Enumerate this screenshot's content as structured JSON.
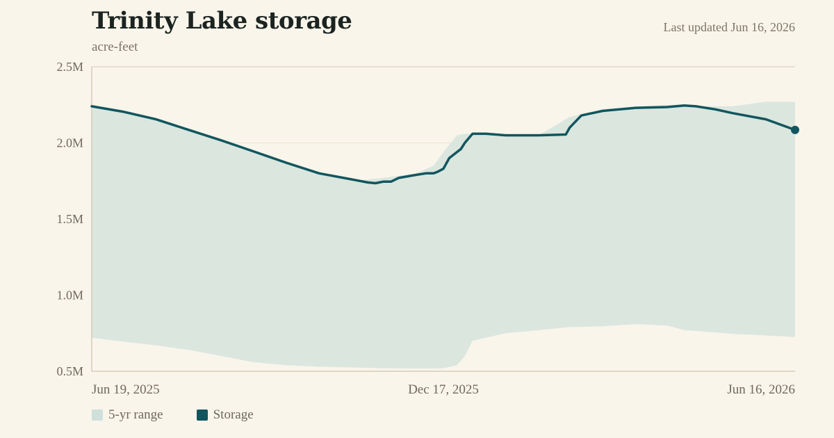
{
  "header": {
    "title": "Trinity Lake storage",
    "subtitle": "acre-feet",
    "updated": "Last updated Jun 16, 2026"
  },
  "legend": {
    "range_label": "5-yr range",
    "storage_label": "Storage"
  },
  "colors": {
    "background": "#f9f5ea",
    "range_fill": "#dbe6df",
    "range_swatch": "#cfe0db",
    "storage_line": "#11565e",
    "axis": "#d3ccbb",
    "grid": "#ebe4d3",
    "tick_text": "#6f695c"
  },
  "chart_data": {
    "type": "area",
    "title": "Trinity Lake storage",
    "ylabel": "acre-feet",
    "x_range": [
      "2025-06-19",
      "2026-06-16"
    ],
    "ylim": [
      500000,
      2500000
    ],
    "y_ticks": [
      {
        "value": 500000,
        "label": "0.5M"
      },
      {
        "value": 1000000,
        "label": "1.0M"
      },
      {
        "value": 1500000,
        "label": "1.5M"
      },
      {
        "value": 2000000,
        "label": "2.0M"
      },
      {
        "value": 2500000,
        "label": "2.5M"
      }
    ],
    "x_ticks": [
      {
        "date": "2025-06-19",
        "label": "Jun 19, 2025"
      },
      {
        "date": "2025-12-17",
        "label": "Dec 17, 2025"
      },
      {
        "date": "2026-06-16",
        "label": "Jun 16, 2026"
      }
    ],
    "grid": true,
    "legend_position": "bottom-left",
    "series": [
      {
        "name": "5-yr range",
        "kind": "band",
        "x": [
          "2025-06-19",
          "2025-07-05",
          "2025-07-22",
          "2025-08-08",
          "2025-08-25",
          "2025-09-10",
          "2025-09-27",
          "2025-10-14",
          "2025-10-31",
          "2025-11-16",
          "2025-12-03",
          "2025-12-12",
          "2025-12-17",
          "2025-12-24",
          "2025-12-28",
          "2026-01-01",
          "2026-01-18",
          "2026-02-04",
          "2026-02-20",
          "2026-03-09",
          "2026-03-26",
          "2026-04-11",
          "2026-04-20",
          "2026-04-26",
          "2026-05-15",
          "2026-06-01",
          "2026-06-16"
        ],
        "upper": [
          2250000,
          2215000,
          2165000,
          2090000,
          2020000,
          1950000,
          1880000,
          1810000,
          1750000,
          1770000,
          1800000,
          1850000,
          1940000,
          2050000,
          2060000,
          2060000,
          2050000,
          2050000,
          2170000,
          2220000,
          2240000,
          2250000,
          2250000,
          2240000,
          2240000,
          2270000,
          2270000
        ],
        "lower": [
          720000,
          695000,
          670000,
          640000,
          600000,
          560000,
          540000,
          530000,
          525000,
          520000,
          518000,
          518000,
          520000,
          540000,
          600000,
          700000,
          750000,
          770000,
          790000,
          795000,
          810000,
          800000,
          770000,
          765000,
          745000,
          735000,
          725000
        ]
      },
      {
        "name": "Storage",
        "kind": "line",
        "x": [
          "2025-06-19",
          "2025-07-05",
          "2025-07-22",
          "2025-08-08",
          "2025-08-25",
          "2025-09-10",
          "2025-09-27",
          "2025-10-14",
          "2025-10-31",
          "2025-11-08",
          "2025-11-12",
          "2025-11-16",
          "2025-11-20",
          "2025-11-24",
          "2025-12-03",
          "2025-12-08",
          "2025-12-12",
          "2025-12-14",
          "2025-12-17",
          "2025-12-20",
          "2025-12-24",
          "2025-12-26",
          "2025-12-28",
          "2026-01-01",
          "2026-01-08",
          "2026-01-18",
          "2026-02-04",
          "2026-02-18",
          "2026-02-20",
          "2026-02-26",
          "2026-03-09",
          "2026-03-26",
          "2026-04-11",
          "2026-04-20",
          "2026-04-26",
          "2026-05-06",
          "2026-05-15",
          "2026-06-01",
          "2026-06-16"
        ],
        "values": [
          2240000,
          2205000,
          2155000,
          2085000,
          2015000,
          1945000,
          1870000,
          1800000,
          1760000,
          1740000,
          1735000,
          1745000,
          1745000,
          1770000,
          1790000,
          1800000,
          1800000,
          1810000,
          1830000,
          1900000,
          1940000,
          1960000,
          2000000,
          2060000,
          2060000,
          2050000,
          2050000,
          2055000,
          2100000,
          2180000,
          2210000,
          2230000,
          2235000,
          2245000,
          2240000,
          2220000,
          2195000,
          2155000,
          2085000
        ]
      }
    ],
    "annotations": [
      {
        "label": "latest",
        "date": "2026-06-16",
        "value": 2085000
      }
    ]
  }
}
